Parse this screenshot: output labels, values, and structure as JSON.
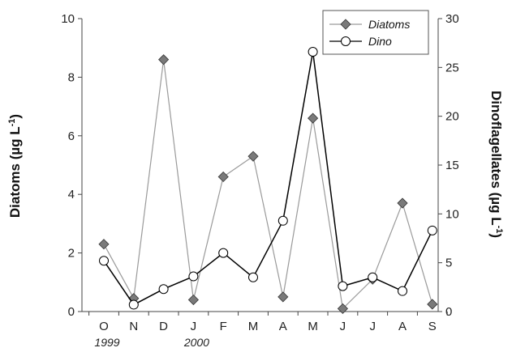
{
  "chart_data": {
    "type": "line",
    "categories": [
      "O",
      "N",
      "D",
      "J",
      "F",
      "M",
      "A",
      "M",
      "J",
      "J",
      "A",
      "S"
    ],
    "year_labels": [
      {
        "category_index": 0,
        "text": "1999"
      },
      {
        "category_index": 3,
        "text": "2000"
      }
    ],
    "y_left": {
      "label_main": "Diatoms (µg L",
      "label_sup": "-1",
      "label_end": ")",
      "range": [
        0,
        10
      ],
      "ticks": [
        "0",
        "2",
        "4",
        "6",
        "8",
        "10"
      ]
    },
    "y_right": {
      "label_main": "Dinoflagellates (µg L",
      "label_sup": "-1",
      "label_end": ")",
      "range": [
        0,
        30
      ],
      "ticks": [
        "0",
        "5",
        "10",
        "15",
        "20",
        "25",
        "30"
      ]
    },
    "series": [
      {
        "name": "Diatoms",
        "axis": "left",
        "marker": "diamond",
        "color": "#9a9a9a",
        "values": [
          2.3,
          0.45,
          8.6,
          0.4,
          4.6,
          5.3,
          0.5,
          6.6,
          0.1,
          1.1,
          3.7,
          0.25
        ]
      },
      {
        "name": "Dino",
        "axis": "right",
        "marker": "circle",
        "color": "#000000",
        "values": [
          5.2,
          0.7,
          2.3,
          3.6,
          6.0,
          3.5,
          9.3,
          26.6,
          2.6,
          3.5,
          2.1,
          8.3
        ]
      }
    ],
    "legend_position": "top-right",
    "grid": false
  }
}
